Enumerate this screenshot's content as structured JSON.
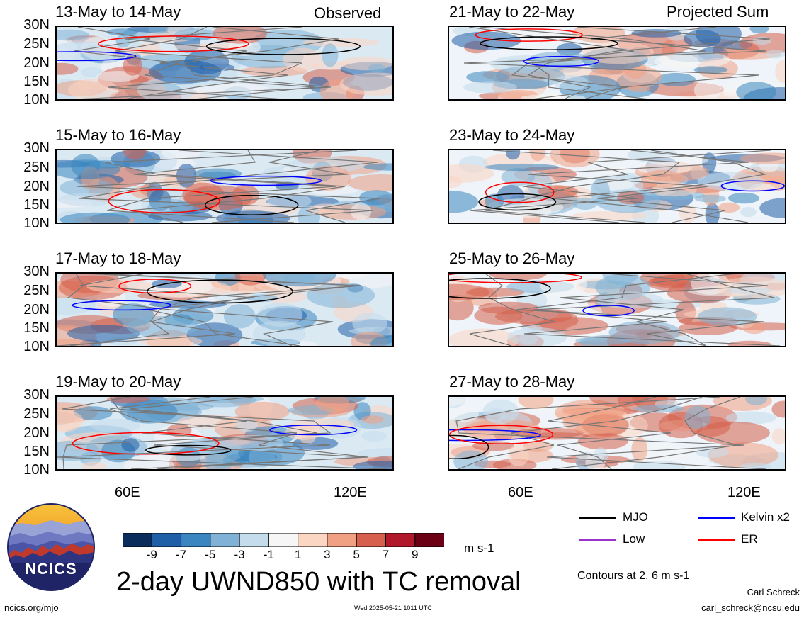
{
  "panels_left": [
    {
      "title": "13-May to 14-May",
      "tag": "Observed"
    },
    {
      "title": "15-May to 16-May",
      "tag": ""
    },
    {
      "title": "17-May to 18-May",
      "tag": ""
    },
    {
      "title": "19-May to 20-May",
      "tag": ""
    }
  ],
  "panels_right": [
    {
      "title": "21-May to 22-May",
      "tag": "Projected Sum"
    },
    {
      "title": "23-May to 24-May",
      "tag": ""
    },
    {
      "title": "25-May to 26-May",
      "tag": ""
    },
    {
      "title": "27-May to 28-May",
      "tag": ""
    }
  ],
  "lat_ticks": [
    "30N",
    "25N",
    "20N",
    "15N",
    "10N"
  ],
  "lon_ticks": [
    "60E",
    "120E"
  ],
  "colorbar": {
    "ticks": [
      "-9",
      "-7",
      "-5",
      "-3",
      "-1",
      "1",
      "3",
      "5",
      "7",
      "9"
    ],
    "colors": [
      "#0b2d5c",
      "#1f5fa8",
      "#3b86c0",
      "#7fb2d6",
      "#c4dcec",
      "#f6f6f6",
      "#fbd6c2",
      "#f0a183",
      "#d6604d",
      "#b2182b",
      "#6b0015"
    ],
    "unit": "m s-1"
  },
  "legend": {
    "mjo": "MJO",
    "kelvin": "Kelvin x2",
    "low": "Low",
    "er": "ER",
    "colors": {
      "mjo": "#000000",
      "kelvin": "#0000ff",
      "low": "#9933cc",
      "er": "#ff0000"
    }
  },
  "main_title": "2-day UWND850 with TC removal",
  "contours_note": "Contours at 2, 6 m s-1",
  "logo_text": "NCICS",
  "footer": {
    "url": "ncics.org/mjo",
    "timestamp": "Wed 2025-05-21 1011 UTC",
    "author": "Carl Schreck",
    "email": "carl_schreck@ncsu.edu"
  }
}
